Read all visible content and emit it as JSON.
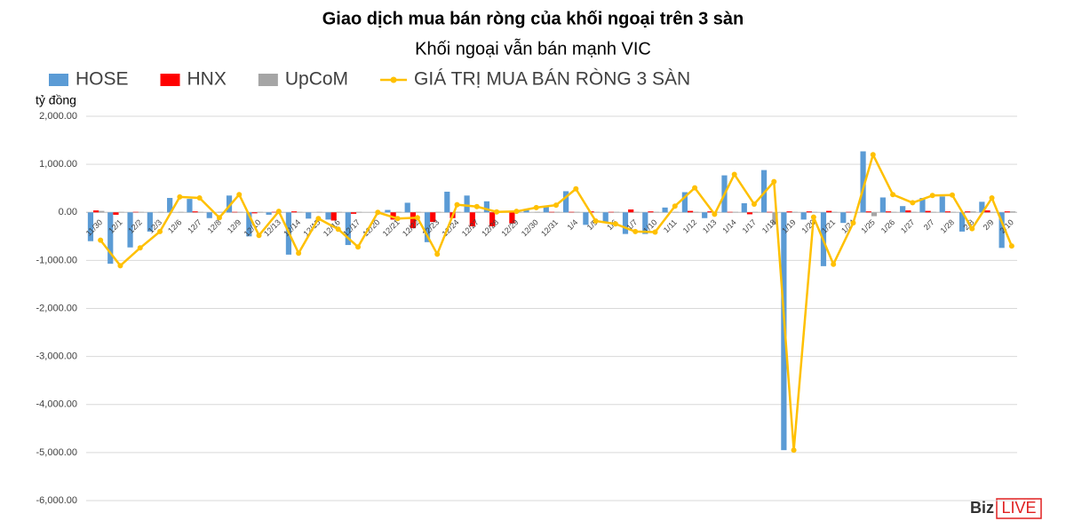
{
  "chart_data": {
    "type": "bar-line",
    "title": "Giao dịch mua bán ròng của khối ngoại trên 3 sàn",
    "subtitle": "Khối ngoại vẫn bán mạnh VIC",
    "y_label": "tỷ đồng",
    "watermark": {
      "left": "Biz",
      "right": "LIVE"
    },
    "categories": [
      "11/30",
      "12/1",
      "12/2",
      "12/3",
      "12/6",
      "12/7",
      "12/8",
      "12/9",
      "12/10",
      "12/13",
      "12/14",
      "12/15",
      "12/16",
      "12/17",
      "12/20",
      "12/21",
      "12/22",
      "12/23",
      "12/24",
      "12/27",
      "12/28",
      "12/29",
      "12/30",
      "12/31",
      "1/4",
      "1/5",
      "1/6",
      "1/7",
      "1/10",
      "1/11",
      "1/12",
      "1/13",
      "1/14",
      "1/17",
      "1/18",
      "1/19",
      "1/20",
      "1/21",
      "1/24",
      "1/25",
      "1/26",
      "1/27",
      "2/7",
      "1/28",
      "2/8",
      "2/9",
      "2/10"
    ],
    "series": [
      {
        "name": "HOSE",
        "type": "bar",
        "color": "#5b9bd5",
        "values": [
          -600,
          -1070,
          -730,
          -400,
          300,
          280,
          -120,
          350,
          -500,
          -50,
          -880,
          -130,
          -150,
          -680,
          0,
          50,
          200,
          -620,
          430,
          350,
          230,
          30,
          50,
          120,
          440,
          -260,
          -200,
          -450,
          -450,
          100,
          420,
          -120,
          770,
          190,
          880,
          -4950,
          -150,
          -1120,
          -220,
          1270,
          310,
          130,
          300,
          330,
          -400,
          220,
          -740
        ]
      },
      {
        "name": "HNX",
        "type": "bar",
        "color": "#ff0000",
        "values": [
          40,
          -50,
          10,
          0,
          0,
          20,
          0,
          10,
          -20,
          10,
          20,
          0,
          -170,
          -30,
          0,
          -150,
          -330,
          -200,
          -120,
          -290,
          -290,
          -230,
          0,
          10,
          10,
          20,
          10,
          60,
          20,
          0,
          30,
          20,
          10,
          -40,
          10,
          20,
          20,
          30,
          10,
          20,
          20,
          40,
          30,
          20,
          20,
          40,
          20
        ]
      },
      {
        "name": "UpCoM",
        "type": "bar",
        "color": "#a5a5a5",
        "values": [
          30,
          10,
          10,
          10,
          10,
          10,
          10,
          10,
          10,
          10,
          10,
          10,
          10,
          10,
          10,
          10,
          10,
          10,
          10,
          10,
          10,
          10,
          10,
          10,
          10,
          10,
          10,
          10,
          10,
          10,
          10,
          10,
          10,
          10,
          -250,
          10,
          10,
          10,
          10,
          -80,
          10,
          10,
          10,
          10,
          20,
          10,
          20
        ]
      },
      {
        "name": "GIÁ TRỊ MUA BÁN RÒNG 3 SÀN",
        "type": "line",
        "color": "#ffc000",
        "values": [
          -580,
          -1110,
          -740,
          -400,
          320,
          300,
          -110,
          370,
          -480,
          20,
          -850,
          -130,
          -350,
          -720,
          0,
          -130,
          -110,
          -870,
          160,
          120,
          10,
          20,
          100,
          150,
          490,
          -180,
          -240,
          -400,
          -410,
          130,
          510,
          -40,
          790,
          170,
          640,
          -4950,
          -100,
          -1080,
          -220,
          1200,
          370,
          200,
          350,
          360,
          -340,
          300,
          -700
        ]
      }
    ],
    "ylim": [
      -6000,
      2000
    ],
    "yticks": [
      {
        "value": -6000,
        "label": "-6,000.00"
      },
      {
        "value": -5000,
        "label": "-5,000.00"
      },
      {
        "value": -4000,
        "label": "-4,000.00"
      },
      {
        "value": -3000,
        "label": "-3,000.00"
      },
      {
        "value": -2000,
        "label": "-2,000.00"
      },
      {
        "value": -1000,
        "label": "-1,000.00"
      },
      {
        "value": 0,
        "label": "0.00"
      },
      {
        "value": 1000,
        "label": "1,000.00"
      },
      {
        "value": 2000,
        "label": "2,000.00"
      }
    ],
    "grid": true,
    "legend": "top"
  }
}
